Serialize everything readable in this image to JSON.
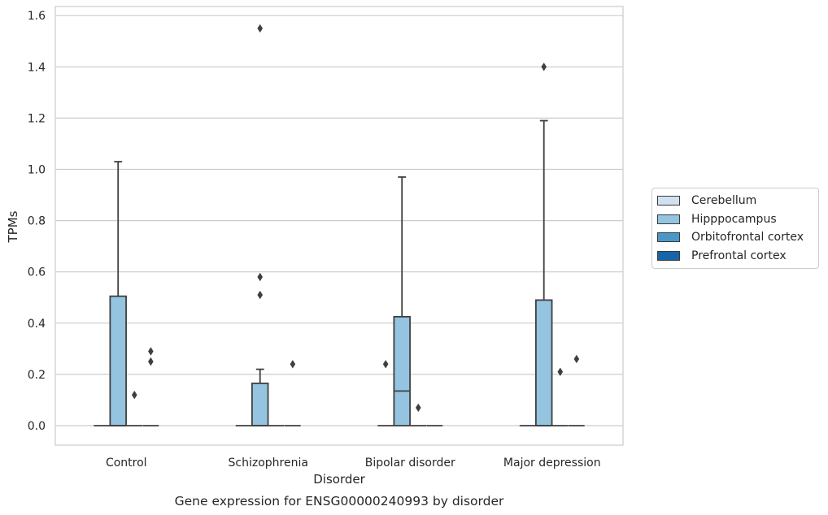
{
  "chart_data": {
    "type": "box",
    "title": "Gene expression for ENSG00000240993 by disorder",
    "xlabel": "Disorder",
    "ylabel": "TPMs",
    "ylim": [
      -0.075,
      1.63
    ],
    "yticks": [
      "0.0",
      "0.2",
      "0.4",
      "0.6",
      "0.8",
      "1.0",
      "1.2",
      "1.4",
      "1.6"
    ],
    "grid": true,
    "legend_position": "right",
    "categories": [
      "Control",
      "Schizophrenia",
      "Bipolar disorder",
      "Major depression"
    ],
    "series": [
      {
        "name": "Cerebellum",
        "color": "#d0e1f2",
        "boxes": [
          {
            "q1": 0,
            "median": 0,
            "q3": 0,
            "whisker_low": 0,
            "whisker_high": 0,
            "outliers": []
          },
          {
            "q1": 0,
            "median": 0,
            "q3": 0,
            "whisker_low": 0,
            "whisker_high": 0,
            "outliers": []
          },
          {
            "q1": 0,
            "median": 0,
            "q3": 0,
            "whisker_low": 0,
            "whisker_high": 0,
            "outliers": []
          },
          {
            "q1": 0,
            "median": 0,
            "q3": 0,
            "whisker_low": 0,
            "whisker_high": 0,
            "outliers": []
          }
        ]
      },
      {
        "name": "Hipppocampus",
        "color": "#94c4df",
        "boxes": [
          {
            "q1": 0,
            "median": 0,
            "q3": 0.505,
            "whisker_low": 0,
            "whisker_high": 1.03,
            "outliers": []
          },
          {
            "q1": 0,
            "median": 0,
            "q3": 0.165,
            "whisker_low": 0,
            "whisker_high": 0.22,
            "outliers": [
              0.51,
              0.58,
              1.55
            ]
          },
          {
            "q1": 0,
            "median": 0.135,
            "q3": 0.425,
            "whisker_low": 0,
            "whisker_high": 0.97,
            "outliers": []
          },
          {
            "q1": 0,
            "median": 0,
            "q3": 0.49,
            "whisker_low": 0,
            "whisker_high": 1.19,
            "outliers": [
              1.4
            ]
          }
        ]
      },
      {
        "name": "Orbitofrontal cortex",
        "color": "#4a98c9",
        "boxes": [
          {
            "q1": 0,
            "median": 0,
            "q3": 0,
            "whisker_low": 0,
            "whisker_high": 0,
            "outliers": [
              0.12
            ]
          },
          {
            "q1": 0,
            "median": 0,
            "q3": 0,
            "whisker_low": 0,
            "whisker_high": 0,
            "outliers": []
          },
          {
            "q1": 0,
            "median": 0,
            "q3": 0,
            "whisker_low": 0,
            "whisker_high": 0,
            "outliers": [
              0.07
            ]
          },
          {
            "q1": 0,
            "median": 0,
            "q3": 0,
            "whisker_low": 0,
            "whisker_high": 0,
            "outliers": [
              0.21
            ]
          }
        ]
      },
      {
        "name": "Prefrontal cortex",
        "color": "#1764ab",
        "boxes": [
          {
            "q1": 0,
            "median": 0,
            "q3": 0,
            "whisker_low": 0,
            "whisker_high": 0,
            "outliers": [
              0.25,
              0.29
            ]
          },
          {
            "q1": 0,
            "median": 0,
            "q3": 0,
            "whisker_low": 0,
            "whisker_high": 0,
            "outliers": [
              0.24
            ]
          },
          {
            "q1": 0,
            "median": 0,
            "q3": 0,
            "whisker_low": 0,
            "whisker_high": 0,
            "outliers": []
          },
          {
            "q1": 0,
            "median": 0,
            "q3": 0,
            "whisker_low": 0,
            "whisker_high": 0,
            "outliers": [
              0.26
            ]
          }
        ]
      }
    ],
    "extra_outliers": [
      {
        "category_index": 2,
        "series_index": 0,
        "value": 0.24
      }
    ]
  }
}
